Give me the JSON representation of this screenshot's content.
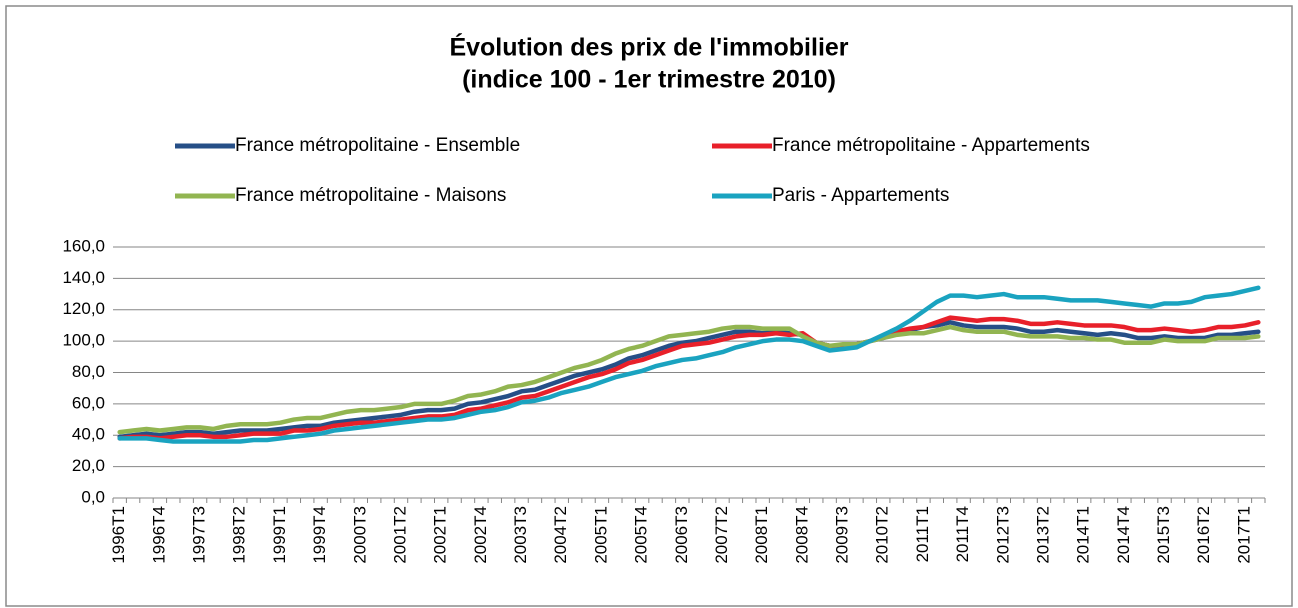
{
  "chart_data": {
    "type": "line",
    "title": "Évolution des prix de l'immobilier",
    "subtitle": "(indice 100 - 1er trimestre 2010)",
    "legend": "top",
    "grid": true,
    "categories": [
      "1996T1",
      null,
      null,
      "1996T4",
      null,
      null,
      "1997T3",
      null,
      null,
      "1998T2",
      null,
      null,
      "1999T1",
      null,
      null,
      "1999T4",
      null,
      null,
      "2000T3",
      null,
      null,
      "2001T2",
      null,
      null,
      "2002T1",
      null,
      null,
      "2002T4",
      null,
      null,
      "2003T3",
      null,
      null,
      "2004T2",
      null,
      null,
      "2005T1",
      null,
      null,
      "2005T4",
      null,
      null,
      "2006T3",
      null,
      null,
      "2007T2",
      null,
      null,
      "2008T1",
      null,
      null,
      "2008T4",
      null,
      null,
      "2009T3",
      null,
      null,
      "2010T2",
      null,
      null,
      "2011T1",
      null,
      null,
      "2011T4",
      null,
      null,
      "2012T3",
      null,
      null,
      "2013T2",
      null,
      null,
      "2014T1",
      null,
      null,
      "2014T4",
      null,
      null,
      "2015T3",
      null,
      null,
      "2016T2",
      null,
      null,
      "2017T1",
      null
    ],
    "ylim": [
      0,
      160
    ],
    "yticks": [
      {
        "value": 0,
        "label": "0,0"
      },
      {
        "value": 20,
        "label": "20,0"
      },
      {
        "value": 40,
        "label": "40,0"
      },
      {
        "value": 60,
        "label": "60,0"
      },
      {
        "value": 80,
        "label": "80,0"
      },
      {
        "value": 100,
        "label": "100,0"
      },
      {
        "value": 120,
        "label": "120,0"
      },
      {
        "value": 140,
        "label": "140,0"
      },
      {
        "value": 160,
        "label": "160,0"
      }
    ],
    "series": [
      {
        "name": "France métropolitaine - Ensemble",
        "color": "#264f87",
        "values": [
          39,
          40,
          41,
          40,
          41,
          42,
          42,
          41,
          42,
          43,
          43,
          43,
          44,
          45,
          46,
          46,
          48,
          49,
          50,
          51,
          52,
          53,
          55,
          56,
          56,
          57,
          60,
          61,
          63,
          65,
          68,
          69,
          72,
          75,
          78,
          80,
          82,
          85,
          89,
          91,
          94,
          97,
          99,
          100,
          102,
          104,
          106,
          106,
          105,
          106,
          105,
          104,
          99,
          97,
          97,
          98,
          100,
          102,
          105,
          107,
          109,
          110,
          112,
          110,
          109,
          109,
          109,
          108,
          106,
          106,
          107,
          106,
          105,
          104,
          105,
          104,
          102,
          102,
          103,
          102,
          102,
          102,
          104,
          104,
          105,
          106
        ]
      },
      {
        "name": "France métropolitaine - Appartements",
        "color": "#e8202a",
        "values": [
          38,
          39,
          39,
          38,
          39,
          40,
          40,
          39,
          39,
          40,
          41,
          41,
          41,
          43,
          43,
          44,
          46,
          47,
          48,
          48,
          49,
          50,
          51,
          52,
          52,
          53,
          56,
          57,
          59,
          61,
          64,
          65,
          68,
          71,
          74,
          77,
          79,
          82,
          86,
          88,
          91,
          94,
          97,
          98,
          99,
          101,
          103,
          104,
          104,
          105,
          104,
          105,
          99,
          97,
          97,
          98,
          100,
          103,
          106,
          108,
          109,
          112,
          115,
          114,
          113,
          114,
          114,
          113,
          111,
          111,
          112,
          111,
          110,
          110,
          110,
          109,
          107,
          107,
          108,
          107,
          106,
          107,
          109,
          109,
          110,
          112
        ]
      },
      {
        "name": "France métropolitaine - Maisons",
        "color": "#92b551",
        "values": [
          42,
          43,
          44,
          43,
          44,
          45,
          45,
          44,
          46,
          47,
          47,
          47,
          48,
          50,
          51,
          51,
          53,
          55,
          56,
          56,
          57,
          58,
          60,
          60,
          60,
          62,
          65,
          66,
          68,
          71,
          72,
          74,
          77,
          80,
          83,
          85,
          88,
          92,
          95,
          97,
          100,
          103,
          104,
          105,
          106,
          108,
          109,
          109,
          108,
          108,
          108,
          103,
          99,
          97,
          98,
          98,
          100,
          102,
          104,
          105,
          105,
          107,
          109,
          107,
          106,
          106,
          106,
          104,
          103,
          103,
          103,
          102,
          102,
          101,
          101,
          99,
          99,
          99,
          101,
          100,
          100,
          100,
          102,
          102,
          102,
          103
        ]
      },
      {
        "name": "Paris - Appartements",
        "color": "#1aa3c0",
        "values": [
          38,
          38,
          38,
          37,
          36,
          36,
          36,
          36,
          36,
          36,
          37,
          37,
          38,
          39,
          40,
          41,
          43,
          44,
          45,
          46,
          47,
          48,
          49,
          50,
          50,
          51,
          53,
          55,
          56,
          58,
          61,
          62,
          64,
          67,
          69,
          71,
          74,
          77,
          79,
          81,
          84,
          86,
          88,
          89,
          91,
          93,
          96,
          98,
          100,
          101,
          101,
          100,
          97,
          94,
          95,
          96,
          100,
          104,
          108,
          113,
          119,
          125,
          129,
          129,
          128,
          129,
          130,
          128,
          128,
          128,
          127,
          126,
          126,
          126,
          125,
          124,
          123,
          122,
          124,
          124,
          125,
          128,
          129,
          130,
          132,
          134
        ]
      }
    ]
  }
}
